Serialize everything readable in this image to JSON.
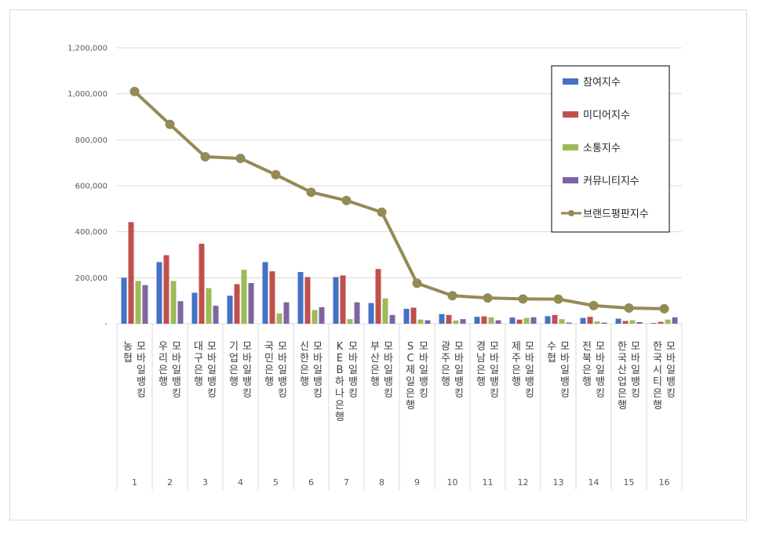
{
  "chart_data": {
    "type": "bar",
    "categories": [
      "농협 모바일뱅킹",
      "우리은행 모바일뱅킹",
      "대구은행 모바일뱅킹",
      "기업은행 모바일뱅킹",
      "국민은행 모바일뱅킹",
      "신한은행 모바일뱅킹",
      "KEB하나은행 모바일뱅킹",
      "부산은행 모바일뱅킹",
      "SC제일은행 모바일뱅킹",
      "광주은행 모바일뱅킹",
      "경남은행 모바일뱅킹",
      "제주은행 모바일뱅킹",
      "수협 모바일뱅킹",
      "전북은행 모바일뱅킹",
      "한국산업은행 모바일뱅킹",
      "한국시티은행 모바일뱅킹"
    ],
    "ranks": [
      "1",
      "2",
      "3",
      "4",
      "5",
      "6",
      "7",
      "8",
      "9",
      "10",
      "11",
      "12",
      "13",
      "14",
      "15",
      "16"
    ],
    "series": [
      {
        "name": "참여지수",
        "kind": "bar",
        "color": "#4472C4",
        "values": [
          200000,
          268000,
          135000,
          122000,
          268000,
          225000,
          203000,
          90000,
          65000,
          42000,
          30000,
          27000,
          33000,
          25000,
          22000,
          3000
        ]
      },
      {
        "name": "미디어지수",
        "kind": "bar",
        "color": "#C0504D",
        "values": [
          442000,
          298000,
          348000,
          172000,
          228000,
          203000,
          210000,
          238000,
          70000,
          38000,
          32000,
          18000,
          38000,
          30000,
          12000,
          8000
        ]
      },
      {
        "name": "소통지수",
        "kind": "bar",
        "color": "#9BBB59",
        "values": [
          186000,
          186000,
          155000,
          235000,
          45000,
          60000,
          20000,
          110000,
          18000,
          14000,
          28000,
          25000,
          20000,
          10000,
          15000,
          18000
        ]
      },
      {
        "name": "커뮤니티지수",
        "kind": "bar",
        "color": "#8064A2",
        "values": [
          168000,
          98000,
          78000,
          177000,
          93000,
          72000,
          93000,
          38000,
          15000,
          20000,
          15000,
          28000,
          5000,
          5000,
          7000,
          28000
        ]
      },
      {
        "name": "브랜드평판지수",
        "kind": "line",
        "color": "#948A54",
        "values": [
          1010000,
          867000,
          726000,
          719000,
          648000,
          572000,
          536000,
          485000,
          176000,
          122000,
          112000,
          108000,
          107000,
          79000,
          68000,
          65000
        ]
      }
    ],
    "ylim": [
      0,
      1200000
    ],
    "yticks": [
      "-",
      "200,000",
      "400,000",
      "600,000",
      "800,000",
      "1,000,000",
      "1,200,000"
    ],
    "legend_position": "right",
    "grid": true
  }
}
